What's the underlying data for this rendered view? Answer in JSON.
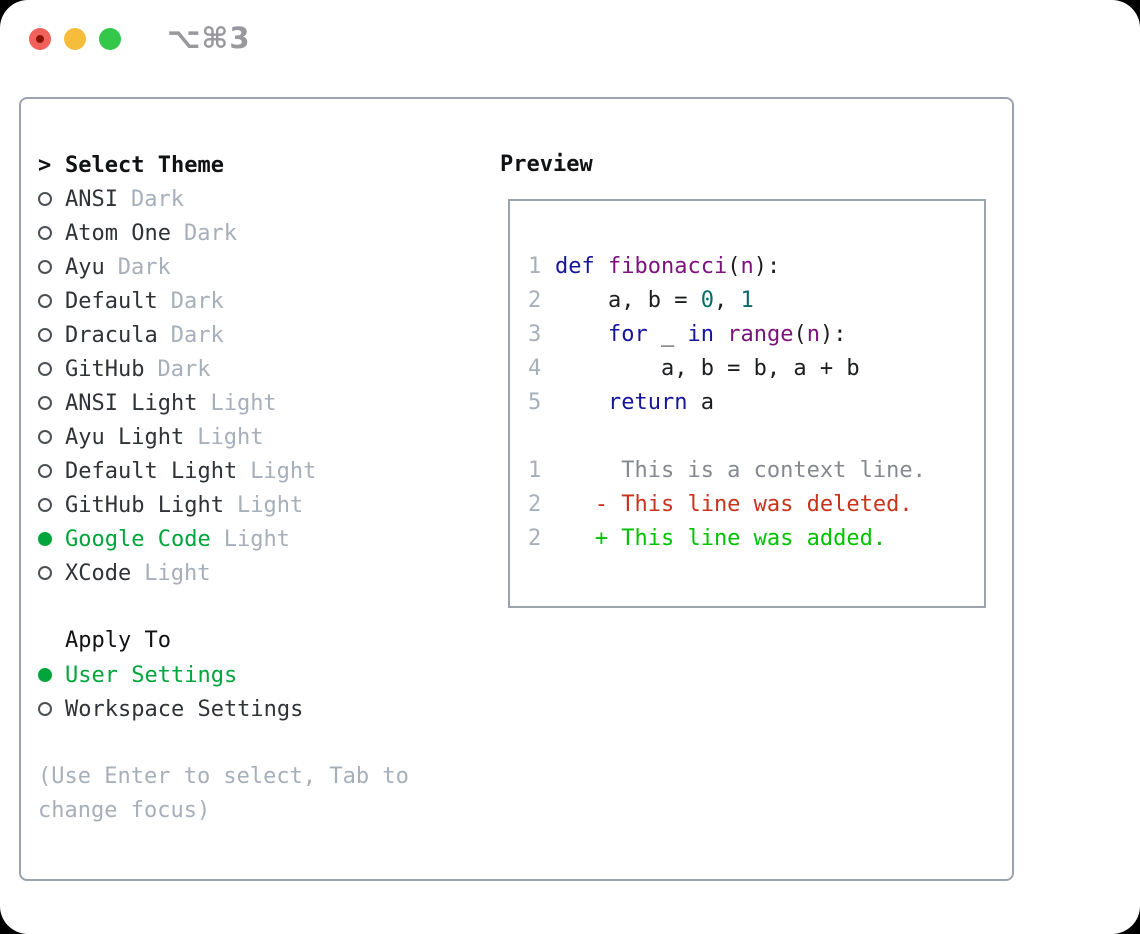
{
  "window": {
    "title_shortcut": "⌥⌘3",
    "traffic_lights": [
      "close",
      "minimize",
      "zoom"
    ]
  },
  "colors": {
    "accent_green": "#00a53c",
    "keyword_blue": "#16169b",
    "function_purple": "#7c127c",
    "literal_teal": "#0a6b6b",
    "context_gray": "#85898f",
    "deleted_red": "#c7331d",
    "added_green": "#00c300",
    "muted_gray": "#a6afba",
    "border_gray": "#9aa3ae"
  },
  "theme_panel": {
    "header": {
      "prefix": ">",
      "label": "Select Theme"
    },
    "themes": [
      {
        "name": "ANSI",
        "tag": "Dark",
        "selected": false
      },
      {
        "name": "Atom One",
        "tag": "Dark",
        "selected": false
      },
      {
        "name": "Ayu",
        "tag": "Dark",
        "selected": false
      },
      {
        "name": "Default",
        "tag": "Dark",
        "selected": false
      },
      {
        "name": "Dracula",
        "tag": "Dark",
        "selected": false
      },
      {
        "name": "GitHub",
        "tag": "Dark",
        "selected": false
      },
      {
        "name": "ANSI Light",
        "tag": "Light",
        "selected": false
      },
      {
        "name": "Ayu Light",
        "tag": "Light",
        "selected": false
      },
      {
        "name": "Default Light",
        "tag": "Light",
        "selected": false
      },
      {
        "name": "GitHub Light",
        "tag": "Light",
        "selected": false
      },
      {
        "name": "Google Code",
        "tag": "Light",
        "selected": true
      },
      {
        "name": "XCode",
        "tag": "Light",
        "selected": false
      }
    ],
    "apply_to": {
      "label": "Apply To",
      "options": [
        {
          "name": "User Settings",
          "selected": true
        },
        {
          "name": "Workspace Settings",
          "selected": false
        }
      ]
    },
    "hint": "(Use Enter to select, Tab to change focus)"
  },
  "preview": {
    "label": "Preview",
    "code_lines": [
      {
        "num": "1",
        "tokens": [
          {
            "t": "def",
            "c": "keyword"
          },
          {
            "t": " ",
            "c": "plain"
          },
          {
            "t": "fibonacci",
            "c": "function"
          },
          {
            "t": "(",
            "c": "plain"
          },
          {
            "t": "n",
            "c": "function"
          },
          {
            "t": "):",
            "c": "plain"
          }
        ]
      },
      {
        "num": "2",
        "tokens": [
          {
            "t": "    a, b = ",
            "c": "plain"
          },
          {
            "t": "0",
            "c": "literal"
          },
          {
            "t": ", ",
            "c": "plain"
          },
          {
            "t": "1",
            "c": "literal"
          }
        ]
      },
      {
        "num": "3",
        "tokens": [
          {
            "t": "    ",
            "c": "plain"
          },
          {
            "t": "for",
            "c": "keyword"
          },
          {
            "t": " _ ",
            "c": "plain"
          },
          {
            "t": "in",
            "c": "keyword"
          },
          {
            "t": " ",
            "c": "plain"
          },
          {
            "t": "range",
            "c": "function"
          },
          {
            "t": "(",
            "c": "plain"
          },
          {
            "t": "n",
            "c": "function"
          },
          {
            "t": "):",
            "c": "plain"
          }
        ]
      },
      {
        "num": "4",
        "tokens": [
          {
            "t": "        a, b = b, a + b",
            "c": "plain"
          }
        ]
      },
      {
        "num": "5",
        "tokens": [
          {
            "t": "    ",
            "c": "plain"
          },
          {
            "t": "return",
            "c": "keyword"
          },
          {
            "t": " a",
            "c": "plain"
          }
        ]
      },
      {
        "num": "",
        "tokens": []
      },
      {
        "num": "1",
        "tokens": [
          {
            "t": "     This is a context line.",
            "c": "context"
          }
        ]
      },
      {
        "num": "2",
        "tokens": [
          {
            "t": "   - This line was deleted.",
            "c": "deleted"
          }
        ]
      },
      {
        "num": "2",
        "tokens": [
          {
            "t": "   + This line was added.",
            "c": "added"
          }
        ]
      }
    ]
  }
}
